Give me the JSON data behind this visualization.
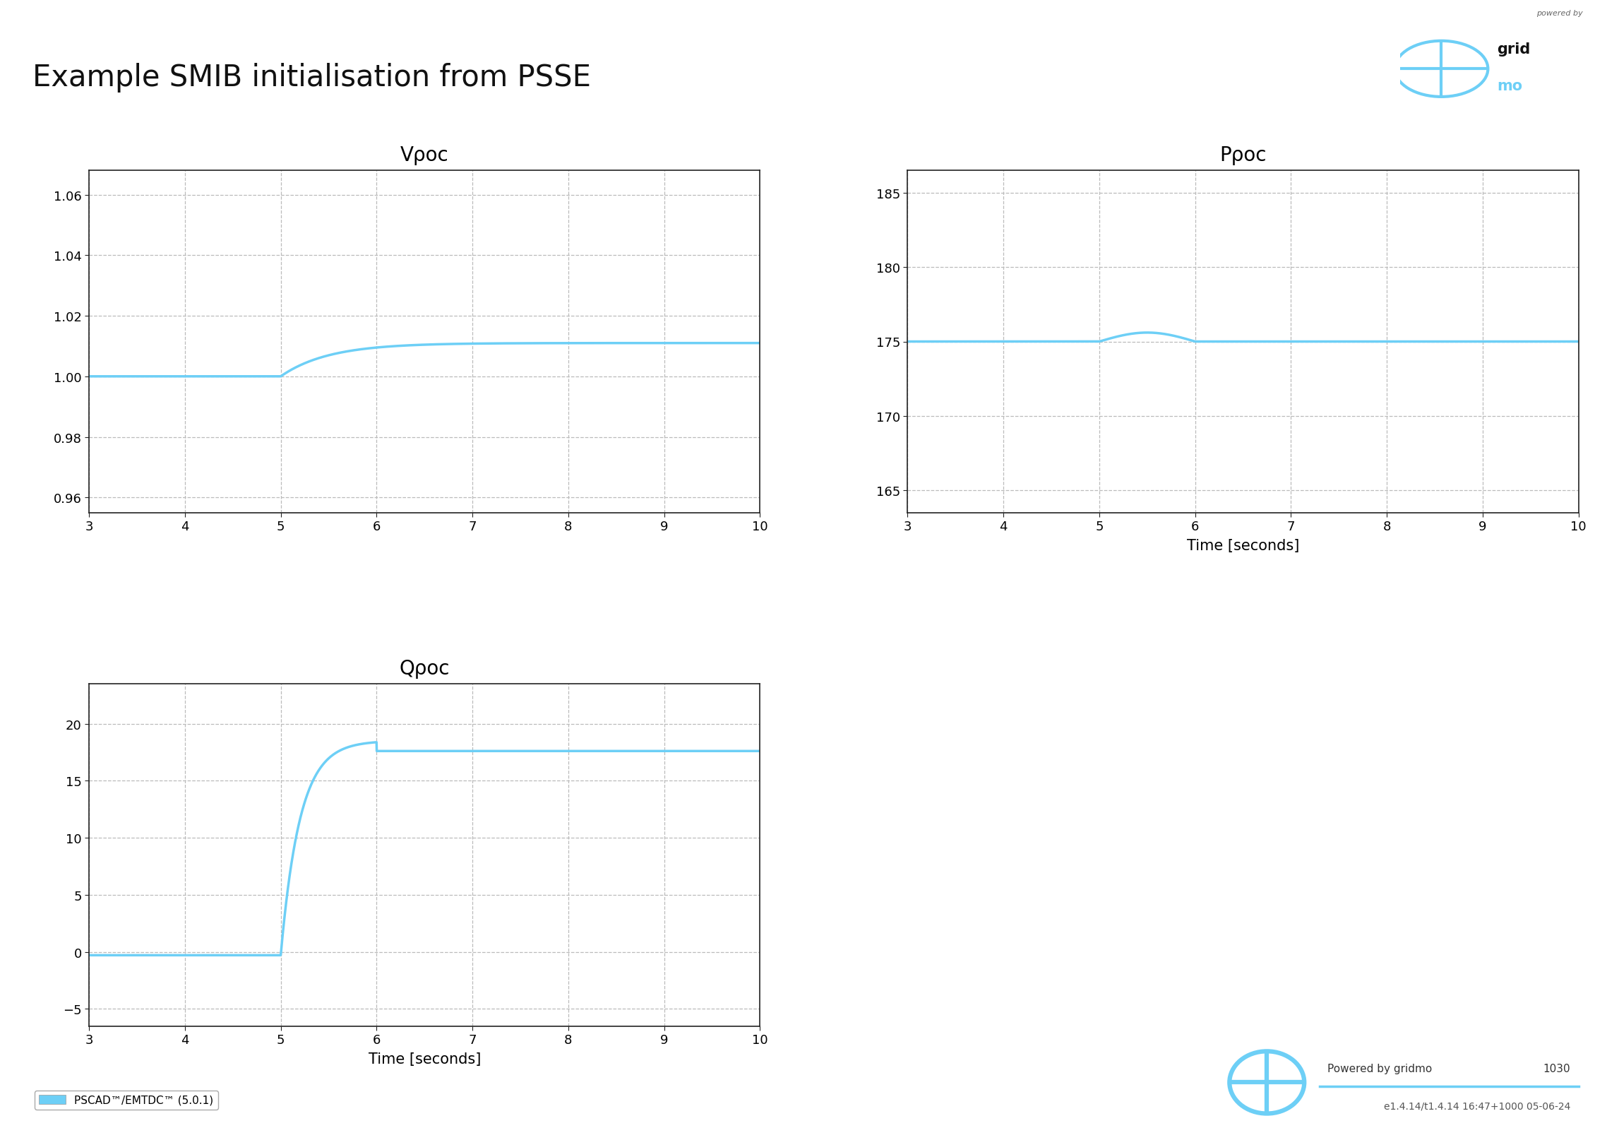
{
  "title": "Example SMIB initialisation from PSSE",
  "line_color": "#6DCFF6",
  "line_width": 2.5,
  "background_color": "#FFFFFF",
  "grid_color": "#BBBBBB",
  "grid_style": "--",
  "subplot1": {
    "title": "Vρoc",
    "xlim": [
      3,
      10
    ],
    "ylim": [
      0.955,
      1.068
    ],
    "yticks": [
      0.96,
      0.98,
      1.0,
      1.02,
      1.04,
      1.06
    ],
    "xticks": [
      3,
      4,
      5,
      6,
      7,
      8,
      9,
      10
    ],
    "xlabel": "",
    "ylabel": ""
  },
  "subplot2": {
    "title": "Pρoc",
    "xlim": [
      3,
      10
    ],
    "ylim": [
      163.5,
      186.5
    ],
    "yticks": [
      165,
      170,
      175,
      180,
      185
    ],
    "xticks": [
      3,
      4,
      5,
      6,
      7,
      8,
      9,
      10
    ],
    "xlabel": "Time [seconds]",
    "ylabel": ""
  },
  "subplot3": {
    "title": "Qρoc",
    "xlim": [
      3,
      10
    ],
    "ylim": [
      -6.5,
      23.5
    ],
    "yticks": [
      -5,
      0,
      5,
      10,
      15,
      20
    ],
    "xticks": [
      3,
      4,
      5,
      6,
      7,
      8,
      9,
      10
    ],
    "xlabel": "Time [seconds]",
    "ylabel": ""
  },
  "legend_label": "PSCAD™/EMTDC™ (5.0.1)",
  "footer_text1": "Powered by gridmo",
  "footer_text2": "1030",
  "footer_text3": "e1.4.14/t1.4.14 16:47+1000 05-06-24",
  "logo_color": "#6DCFF6",
  "axis_color": "#222222",
  "tick_color": "#222222",
  "powered_by_text": "powered by",
  "logo_grid_text": "grid",
  "logo_mo_text": "mo"
}
